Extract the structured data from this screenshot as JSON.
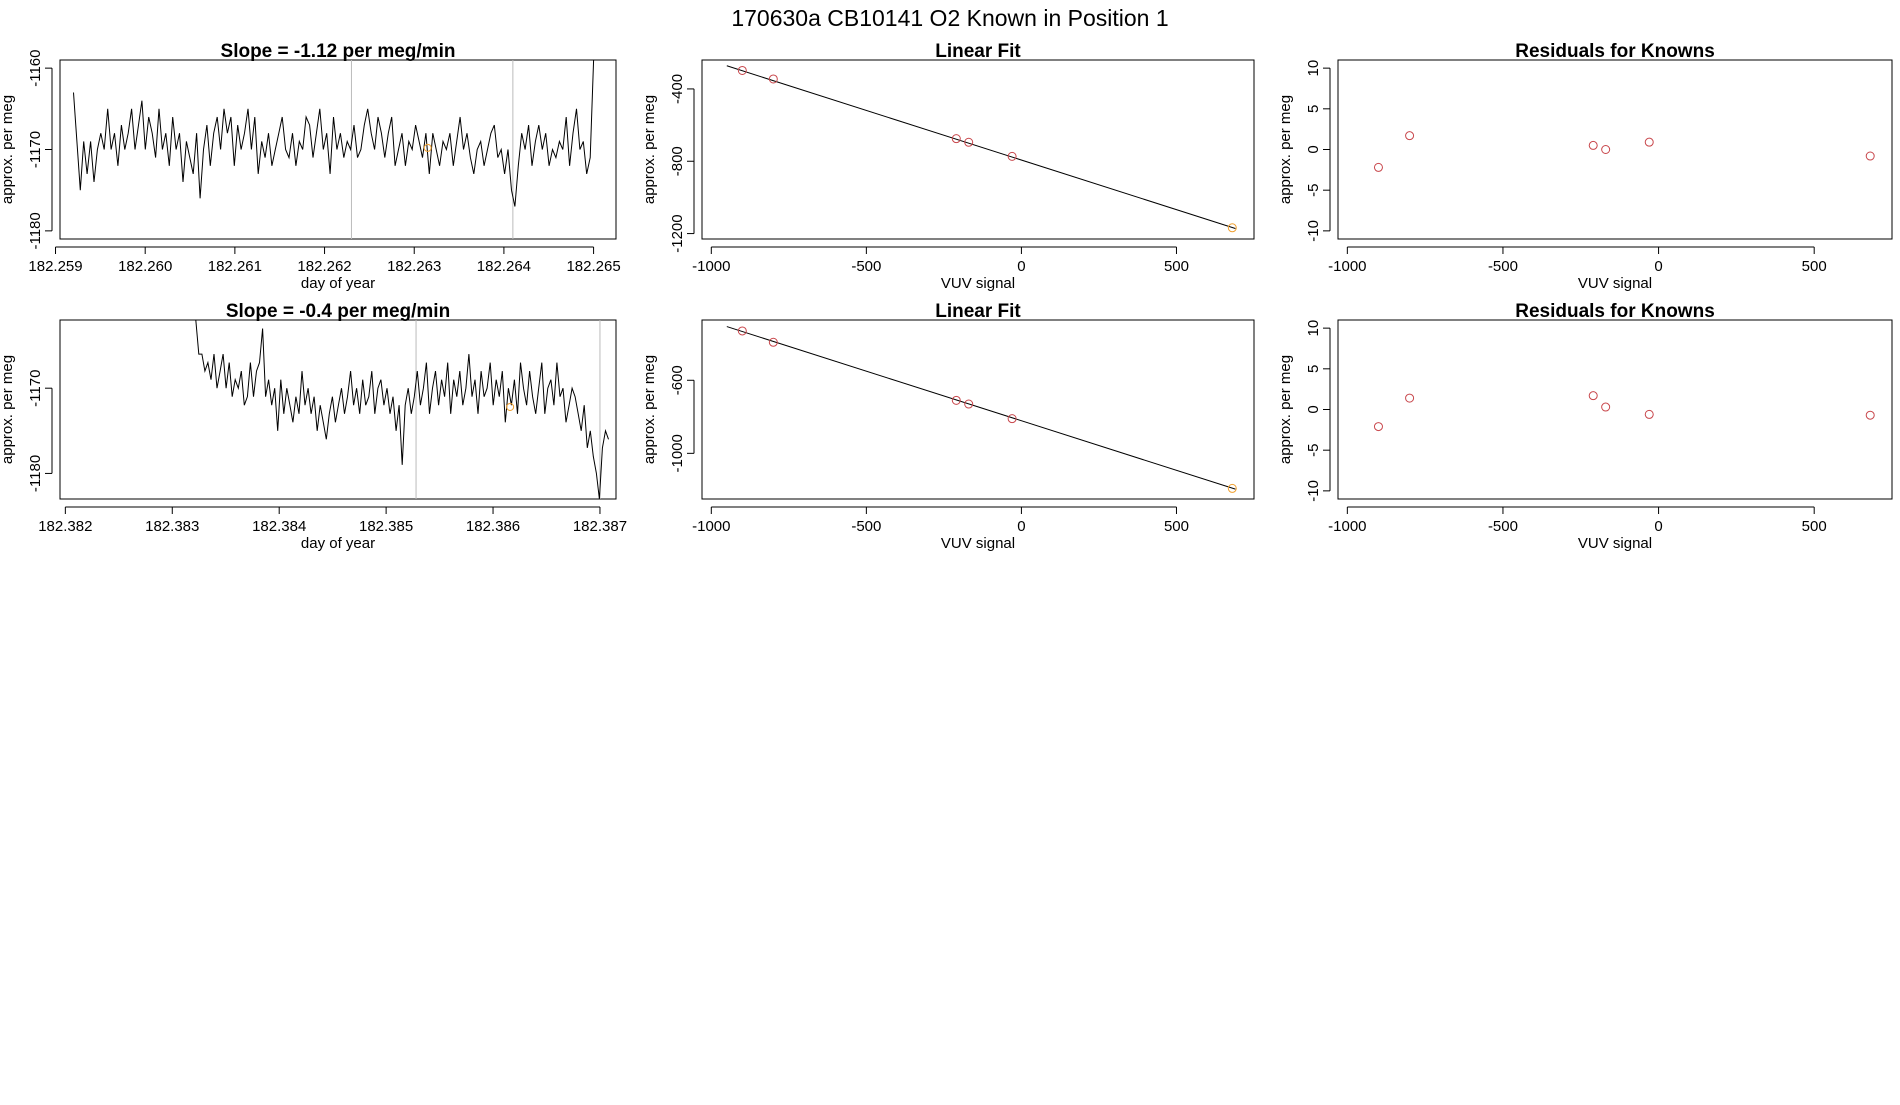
{
  "page": {
    "title": "170630a     CB10141    O2 Known in Position  1"
  },
  "chart_data": [
    {
      "id": "ts1",
      "type": "line",
      "title": "Slope =  -1.12  per meg/min",
      "xlabel": "day of year",
      "ylabel": "approx. per meg",
      "xlim": [
        182.25905,
        182.26525
      ],
      "ylim": [
        -1181,
        -1159
      ],
      "x_ticks": [
        "182.259",
        "182.260",
        "182.261",
        "182.262",
        "182.263",
        "182.264",
        "182.265"
      ],
      "y_ticks": [
        "-1160",
        "-1170",
        "-1180"
      ],
      "x_start": 182.2592,
      "x_end": 182.265,
      "series_values": [
        -1163,
        -1169,
        -1175,
        -1169,
        -1173,
        -1169,
        -1174,
        -1170,
        -1168,
        -1170,
        -1165,
        -1170,
        -1168,
        -1172,
        -1167,
        -1170,
        -1168,
        -1165,
        -1170,
        -1167,
        -1164,
        -1170,
        -1166,
        -1168,
        -1171,
        -1165,
        -1170,
        -1168,
        -1172,
        -1166,
        -1170,
        -1168,
        -1174,
        -1169,
        -1171,
        -1173,
        -1168,
        -1176,
        -1170,
        -1167,
        -1172,
        -1168,
        -1166,
        -1170,
        -1165,
        -1168,
        -1166,
        -1172,
        -1167,
        -1170,
        -1168,
        -1165,
        -1170,
        -1166,
        -1173,
        -1169,
        -1171,
        -1168,
        -1172,
        -1170,
        -1168,
        -1166,
        -1170,
        -1171,
        -1168,
        -1172,
        -1169,
        -1170,
        -1166,
        -1167,
        -1171,
        -1168,
        -1165,
        -1170,
        -1168,
        -1173,
        -1166,
        -1170,
        -1168,
        -1171,
        -1169,
        -1170,
        -1167,
        -1171,
        -1170,
        -1167,
        -1165,
        -1168,
        -1170,
        -1166,
        -1168,
        -1171,
        -1168,
        -1166,
        -1172,
        -1170,
        -1168,
        -1172,
        -1169,
        -1170,
        -1167,
        -1169,
        -1171,
        -1168,
        -1173,
        -1168,
        -1170,
        -1172,
        -1169,
        -1170,
        -1168,
        -1172,
        -1169,
        -1166,
        -1170,
        -1168,
        -1171,
        -1173,
        -1170,
        -1169,
        -1172,
        -1170,
        -1168,
        -1167,
        -1171,
        -1170,
        -1173,
        -1170,
        -1175,
        -1177,
        -1172,
        -1168,
        -1170,
        -1167,
        -1172,
        -1169,
        -1167,
        -1170,
        -1168,
        -1172,
        -1170,
        -1171,
        -1169,
        -1170,
        -1166,
        -1172,
        -1168,
        -1165,
        -1170,
        -1169,
        -1173,
        -1171,
        -1159
      ],
      "vlines": [
        182.2623,
        182.2641
      ],
      "highlight": {
        "x": 182.26315,
        "y": -1169.8
      }
    },
    {
      "id": "fit1",
      "type": "scatter",
      "title": "Linear Fit",
      "xlabel": "VUV signal",
      "ylabel": "approx. per meg",
      "xlim": [
        -1030,
        750
      ],
      "ylim": [
        -1230,
        -240
      ],
      "x_ticks": [
        "-1000",
        "-500",
        "0",
        "500"
      ],
      "y_ticks": [
        "-400",
        "-800",
        "-1200"
      ],
      "points": [
        [
          -900,
          -298
        ],
        [
          -800,
          -345
        ],
        [
          -210,
          -675
        ],
        [
          -170,
          -695
        ],
        [
          -30,
          -773
        ],
        [
          680,
          -1168
        ]
      ],
      "highlight_index": 5,
      "line": [
        [
          -950,
          -272
        ],
        [
          690,
          -1172
        ]
      ]
    },
    {
      "id": "res1",
      "type": "scatter",
      "title": "Residuals for Knowns",
      "xlabel": "VUV signal",
      "ylabel": "approx. per meg",
      "xlim": [
        -1030,
        750
      ],
      "ylim": [
        -11,
        11
      ],
      "x_ticks": [
        "-1000",
        "-500",
        "0",
        "500"
      ],
      "y_ticks": [
        "10",
        "5",
        "0",
        "-5",
        "-10"
      ],
      "points": [
        [
          -900,
          -2.2
        ],
        [
          -800,
          1.7
        ],
        [
          -210,
          0.5
        ],
        [
          -170,
          0
        ],
        [
          -30,
          0.9
        ],
        [
          680,
          -0.8
        ]
      ]
    },
    {
      "id": "ts2",
      "type": "line",
      "title": "Slope =  -0.4  per meg/min",
      "xlabel": "day of year",
      "ylabel": "approx. per meg",
      "xlim": [
        182.38195,
        182.38715
      ],
      "ylim": [
        -1183,
        -1162
      ],
      "x_ticks": [
        "182.382",
        "182.383",
        "182.384",
        "182.385",
        "182.386",
        "182.387"
      ],
      "y_ticks": [
        "-1170",
        "-1180"
      ],
      "x_start": 182.38322,
      "x_end": 182.38708,
      "series_values": [
        -1162,
        -1166,
        -1166,
        -1168,
        -1167,
        -1169,
        -1166,
        -1170,
        -1168,
        -1166,
        -1170,
        -1167,
        -1171,
        -1169,
        -1170,
        -1168,
        -1172,
        -1171,
        -1167,
        -1171,
        -1168,
        -1167,
        -1163,
        -1171,
        -1169,
        -1172,
        -1170,
        -1175,
        -1169,
        -1173,
        -1170,
        -1172,
        -1174,
        -1171,
        -1173,
        -1168,
        -1172,
        -1170,
        -1173,
        -1171,
        -1175,
        -1172,
        -1174,
        -1176,
        -1173,
        -1171,
        -1174,
        -1172,
        -1170,
        -1173,
        -1171,
        -1168,
        -1172,
        -1170,
        -1173,
        -1169,
        -1172,
        -1171,
        -1168,
        -1173,
        -1170,
        -1169,
        -1172,
        -1170,
        -1173,
        -1171,
        -1175,
        -1172,
        -1179,
        -1172,
        -1170,
        -1173,
        -1171,
        -1168,
        -1172,
        -1170,
        -1167,
        -1173,
        -1170,
        -1168,
        -1172,
        -1169,
        -1171,
        -1167,
        -1173,
        -1169,
        -1171,
        -1168,
        -1172,
        -1170,
        -1166,
        -1171,
        -1169,
        -1173,
        -1168,
        -1171,
        -1170,
        -1167,
        -1172,
        -1169,
        -1171,
        -1168,
        -1174,
        -1170,
        -1172,
        -1169,
        -1173,
        -1167,
        -1170,
        -1172,
        -1168,
        -1171,
        -1173,
        -1170,
        -1167,
        -1173,
        -1170,
        -1169,
        -1172,
        -1167,
        -1171,
        -1170,
        -1174,
        -1172,
        -1170,
        -1171,
        -1173,
        -1175,
        -1172,
        -1177,
        -1175,
        -1178,
        -1180,
        -1183,
        -1177,
        -1175,
        -1176
      ],
      "vlines": [
        182.38528,
        182.387
      ],
      "highlight": {
        "x": 182.38616,
        "y": -1172.2
      }
    },
    {
      "id": "fit2",
      "type": "scatter",
      "title": "Linear Fit",
      "xlabel": "VUV signal",
      "ylabel": "approx. per meg",
      "xlim": [
        -1030,
        750
      ],
      "ylim": [
        -1250,
        -270
      ],
      "x_ticks": [
        "-1000",
        "-500",
        "0",
        "500"
      ],
      "y_ticks": [
        "-600",
        "-1000"
      ],
      "points": [
        [
          -900,
          -330
        ],
        [
          -800,
          -392
        ],
        [
          -210,
          -710
        ],
        [
          -170,
          -730
        ],
        [
          -30,
          -810
        ],
        [
          680,
          -1192
        ]
      ],
      "highlight_index": 5,
      "line": [
        [
          -950,
          -306
        ],
        [
          690,
          -1196
        ]
      ]
    },
    {
      "id": "res2",
      "type": "scatter",
      "title": "Residuals for Knowns",
      "xlabel": "VUV signal",
      "ylabel": "approx. per meg",
      "xlim": [
        -1030,
        750
      ],
      "ylim": [
        -11,
        11
      ],
      "x_ticks": [
        "-1000",
        "-500",
        "0",
        "500"
      ],
      "y_ticks": [
        "10",
        "5",
        "0",
        "-5",
        "-10"
      ],
      "points": [
        [
          -900,
          -2.1
        ],
        [
          -800,
          1.4
        ],
        [
          -210,
          1.7
        ],
        [
          -170,
          0.3
        ],
        [
          -30,
          -0.6
        ],
        [
          680,
          -0.7
        ]
      ]
    }
  ],
  "colors": {
    "line": "#000000",
    "point": "#c8464b",
    "highlight": "#f0a030",
    "vline": "#bbbbbb",
    "frame": "#000000"
  }
}
